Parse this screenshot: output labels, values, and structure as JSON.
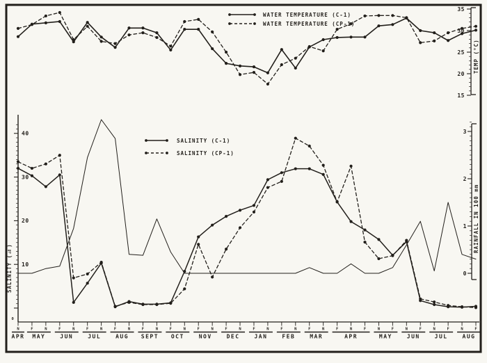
{
  "figure": {
    "ink": "#221f1b",
    "paper": "#f8f7f2",
    "description_visible_text_only": true
  },
  "legends": {
    "temperature": [
      {
        "label": "WATER TEMPERATURE (C-1)",
        "style": "solid"
      },
      {
        "label": "WATER TEMPERATURE (CP-1)",
        "style": "dashed"
      }
    ],
    "salinity": [
      {
        "label": "SALINITY (C-1)",
        "style": "solid"
      },
      {
        "label": "SALINITY (CP-1)",
        "style": "dashed"
      }
    ]
  },
  "axes": {
    "temp": {
      "title": "TEMP (°C)",
      "tick_labels": [
        35,
        30,
        25,
        20,
        15
      ],
      "range": [
        15,
        35
      ]
    },
    "salinity": {
      "title": "SALINITY (‰)",
      "tick_labels": [
        40,
        30,
        20,
        10
      ],
      "zero_label": "0",
      "range": [
        0,
        42
      ]
    },
    "rainfall": {
      "title": "RAINFALL IN 100 mm",
      "tick_labels": [
        3,
        2,
        1,
        0
      ],
      "range": [
        0,
        3.3
      ]
    },
    "x": {
      "fortnight_letters": [
        "N",
        "F",
        "N",
        "F",
        "N",
        "F",
        "N",
        "F",
        "N",
        "F",
        "N",
        "F",
        "N",
        "F",
        "N",
        "F",
        "N",
        "F",
        "N",
        "F",
        "N",
        "F",
        "N",
        "F",
        "N",
        "F",
        "N",
        "F",
        "N",
        "F",
        "N",
        "F",
        "N",
        "F"
      ],
      "months": [
        {
          "label": "APR",
          "first": 0,
          "last": 0
        },
        {
          "label": "MAY",
          "first": 1,
          "last": 2
        },
        {
          "label": "JUN",
          "first": 3,
          "last": 4
        },
        {
          "label": "JUL",
          "first": 5,
          "last": 6
        },
        {
          "label": "AUG",
          "first": 7,
          "last": 8
        },
        {
          "label": "SEPT",
          "first": 9,
          "last": 10
        },
        {
          "label": "OCT",
          "first": 11,
          "last": 12
        },
        {
          "label": "NOV",
          "first": 13,
          "last": 14
        },
        {
          "label": "DEC",
          "first": 15,
          "last": 16
        },
        {
          "label": "JAN",
          "first": 17,
          "last": 18
        },
        {
          "label": "FEB",
          "first": 19,
          "last": 20
        },
        {
          "label": "MAR",
          "first": 21,
          "last": 22
        },
        {
          "label": "APR",
          "first": 23,
          "last": 25
        },
        {
          "label": "MAY",
          "first": 26,
          "last": 27
        },
        {
          "label": "JUN",
          "first": 28,
          "last": 29
        },
        {
          "label": "JUL",
          "first": 30,
          "last": 31
        },
        {
          "label": "AUG",
          "first": 32,
          "last": 33
        }
      ]
    }
  },
  "chart_data": [
    {
      "id": "water-temperature",
      "type": "line",
      "title": "",
      "xlabel": "",
      "ylabel": "TEMP (°C)",
      "ylim": [
        15,
        35
      ],
      "yticks": [
        35,
        30,
        25,
        20,
        15
      ],
      "grid": false,
      "legend_position": "top-center",
      "x": [
        "APR N",
        "MAY F",
        "MAY N",
        "JUN F",
        "JUN N",
        "JUL F",
        "JUL N",
        "AUG F",
        "AUG N",
        "SEPT F",
        "SEPT N",
        "OCT F",
        "OCT N",
        "NOV F",
        "NOV N",
        "DEC F",
        "DEC N",
        "JAN F",
        "JAN N",
        "FEB F",
        "FEB N",
        "MAR F",
        "MAR N",
        "APR F",
        "APR N",
        "APR F2",
        "MAY F",
        "MAY N",
        "JUN F",
        "JUN N",
        "JUL F",
        "JUL N",
        "AUG F",
        "AUG N"
      ],
      "series": [
        {
          "name": "WATER TEMPERATURE (C-1)",
          "style": "solid",
          "marker": "dot",
          "values": [
            28.6,
            31.5,
            31.8,
            32.1,
            27.4,
            31.9,
            28.5,
            26.1,
            30.6,
            30.6,
            29.5,
            25.5,
            30.3,
            30.3,
            25.8,
            22.4,
            21.8,
            21.6,
            20.2,
            25.6,
            21.3,
            26.2,
            27.9,
            28.4,
            28.5,
            28.5,
            31.1,
            31.4,
            32.9,
            30.0,
            29.5,
            27.7,
            29.3,
            30.1
          ]
        },
        {
          "name": "WATER TEMPERATURE (CP-1)",
          "style": "dashed",
          "marker": "dot",
          "values": [
            30.5,
            31.4,
            33.4,
            34.2,
            27.9,
            31.0,
            27.5,
            27.0,
            29.0,
            29.5,
            28.4,
            26.4,
            32.1,
            32.6,
            29.7,
            25.0,
            19.8,
            20.3,
            17.6,
            22.1,
            23.6,
            26.3,
            25.3,
            30.3,
            31.6,
            33.4,
            33.5,
            33.5,
            33.0,
            27.2,
            27.6,
            29.5,
            30.5,
            31.0
          ]
        }
      ]
    },
    {
      "id": "salinity-and-rainfall",
      "type": "line",
      "title": "",
      "xlabel": "",
      "ylabel_left": "SALINITY (‰)",
      "ylim_left": [
        0,
        42
      ],
      "yticks_left": [
        40,
        30,
        20,
        10,
        0
      ],
      "ylabel_right": "RAINFALL IN 100 mm",
      "ylim_right": [
        0,
        3.3
      ],
      "yticks_right": [
        3,
        2,
        1,
        0
      ],
      "grid": false,
      "legend_position": "upper-left-inside",
      "x": [
        "APR N",
        "MAY F",
        "MAY N",
        "JUN F",
        "JUN N",
        "JUL F",
        "JUL N",
        "AUG F",
        "AUG N",
        "SEPT F",
        "SEPT N",
        "OCT F",
        "OCT N",
        "NOV F",
        "NOV N",
        "DEC F",
        "DEC N",
        "JAN F",
        "JAN N",
        "FEB F",
        "FEB N",
        "MAR F",
        "MAR N",
        "APR F",
        "APR N",
        "APR F2",
        "MAY F",
        "MAY N",
        "JUN F",
        "JUN N",
        "JUL F",
        "JUL N",
        "AUG F",
        "AUG N"
      ],
      "series": [
        {
          "name": "SALINITY (C-1)",
          "axis": "left",
          "style": "solid",
          "marker": "dot",
          "values": [
            32.0,
            30.3,
            27.8,
            30.5,
            1.3,
            5.7,
            10.3,
            0.3,
            1.5,
            0.9,
            0.9,
            1.2,
            8.4,
            16.3,
            19.0,
            21.0,
            22.4,
            23.5,
            29.4,
            31.0,
            31.9,
            31.9,
            30.6,
            24.3,
            19.8,
            17.9,
            15.7,
            12.1,
            15.2,
            1.7,
            0.8,
            0.3,
            0.2,
            0.4
          ]
        },
        {
          "name": "SALINITY (CP-1)",
          "axis": "left",
          "style": "dashed",
          "marker": "dot",
          "values": [
            33.5,
            32.0,
            33.0,
            35.0,
            6.9,
            7.8,
            10.5,
            0.4,
            1.3,
            0.8,
            0.8,
            1.1,
            4.4,
            14.6,
            7.1,
            13.5,
            18.4,
            22.0,
            27.6,
            29.0,
            38.9,
            37.1,
            32.7,
            24.3,
            32.5,
            15.1,
            11.3,
            12.0,
            15.5,
            2.1,
            1.4,
            0.6,
            0.3,
            0.1
          ]
        },
        {
          "name": "RAINFALL",
          "axis": "right",
          "style": "thin-solid",
          "marker": "none",
          "values": [
            0,
            0,
            0.1,
            0.15,
            0.95,
            2.45,
            3.25,
            2.85,
            0.4,
            0.38,
            1.15,
            0.45,
            0,
            0,
            0,
            0,
            0,
            0,
            0,
            0,
            0,
            0.12,
            0,
            0,
            0.2,
            0,
            0,
            0.12,
            0.6,
            1.1,
            0.05,
            1.5,
            0.4,
            0.3
          ]
        }
      ]
    }
  ]
}
